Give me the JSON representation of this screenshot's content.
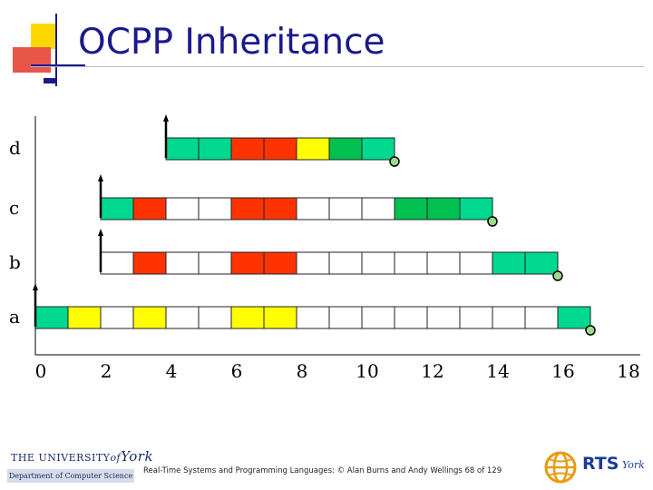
{
  "title": "OCPP Inheritance",
  "footer": "Real-Time Systems and Programming Languages: © Alan Burns and Andy Wellings 68 of 129",
  "logos": {
    "york_top": "THE UNIVERSITY",
    "york_of": "of",
    "york_york": "York",
    "york_dept": "Department of Computer Science",
    "rts_text": "RTS",
    "rts_york": "York"
  },
  "colors": {
    "release": "#00d890",
    "q_lock": "#ff3300",
    "v_lock": "#ffff00",
    "v_q_lock": "#00c050",
    "idle": "#ffffff",
    "finish_marker": "#99dd88",
    "title": "#1a1a8c",
    "deco_yellow": "#ffd700",
    "deco_red": "#e8564a"
  },
  "chart_data": {
    "type": "timeline",
    "x_ticks": [
      "0",
      "2",
      "4",
      "6",
      "8",
      "10",
      "12",
      "14",
      "16",
      "18"
    ],
    "x_range": [
      0,
      18
    ],
    "tasks": [
      {
        "name": "d",
        "release": 4,
        "finish": 11,
        "cells": [
          {
            "start": 4,
            "color": "release"
          },
          {
            "start": 5,
            "color": "release"
          },
          {
            "start": 6,
            "color": "q_lock"
          },
          {
            "start": 7,
            "color": "q_lock"
          },
          {
            "start": 8,
            "color": "v_lock"
          },
          {
            "start": 9,
            "color": "v_q_lock"
          },
          {
            "start": 10,
            "color": "release"
          }
        ]
      },
      {
        "name": "c",
        "release": 2,
        "finish": 14,
        "cells": [
          {
            "start": 2,
            "color": "release"
          },
          {
            "start": 3,
            "color": "q_lock"
          },
          {
            "start": 4,
            "color": "idle"
          },
          {
            "start": 5,
            "color": "idle"
          },
          {
            "start": 6,
            "color": "q_lock"
          },
          {
            "start": 7,
            "color": "q_lock"
          },
          {
            "start": 8,
            "color": "idle"
          },
          {
            "start": 9,
            "color": "idle"
          },
          {
            "start": 10,
            "color": "idle"
          },
          {
            "start": 11,
            "color": "v_q_lock"
          },
          {
            "start": 12,
            "color": "v_q_lock"
          },
          {
            "start": 13,
            "color": "release"
          }
        ]
      },
      {
        "name": "b",
        "release": 2,
        "finish": 16,
        "cells": [
          {
            "start": 2,
            "color": "idle"
          },
          {
            "start": 3,
            "color": "q_lock"
          },
          {
            "start": 4,
            "color": "idle"
          },
          {
            "start": 5,
            "color": "idle"
          },
          {
            "start": 6,
            "color": "q_lock"
          },
          {
            "start": 7,
            "color": "q_lock"
          },
          {
            "start": 8,
            "color": "idle"
          },
          {
            "start": 9,
            "color": "idle"
          },
          {
            "start": 10,
            "color": "idle"
          },
          {
            "start": 11,
            "color": "idle"
          },
          {
            "start": 12,
            "color": "idle"
          },
          {
            "start": 13,
            "color": "idle"
          },
          {
            "start": 14,
            "color": "release"
          },
          {
            "start": 15,
            "color": "release"
          }
        ]
      },
      {
        "name": "a",
        "release": 0,
        "finish": 17,
        "cells": [
          {
            "start": 0,
            "color": "release"
          },
          {
            "start": 1,
            "color": "v_lock"
          },
          {
            "start": 2,
            "color": "idle"
          },
          {
            "start": 3,
            "color": "v_lock"
          },
          {
            "start": 4,
            "color": "idle"
          },
          {
            "start": 5,
            "color": "idle"
          },
          {
            "start": 6,
            "color": "v_lock"
          },
          {
            "start": 7,
            "color": "v_lock"
          },
          {
            "start": 8,
            "color": "idle"
          },
          {
            "start": 9,
            "color": "idle"
          },
          {
            "start": 10,
            "color": "idle"
          },
          {
            "start": 11,
            "color": "idle"
          },
          {
            "start": 12,
            "color": "idle"
          },
          {
            "start": 13,
            "color": "idle"
          },
          {
            "start": 14,
            "color": "idle"
          },
          {
            "start": 15,
            "color": "idle"
          },
          {
            "start": 16,
            "color": "release"
          }
        ]
      }
    ]
  }
}
